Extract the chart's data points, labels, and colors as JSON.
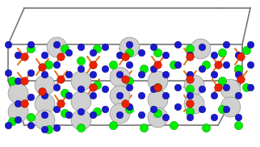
{
  "figsize": [
    3.22,
    1.82
  ],
  "dpi": 100,
  "bg_color": "white",
  "xlim": [
    0,
    322
  ],
  "ylim": [
    0,
    182
  ],
  "box_lines": [
    [
      [
        30,
        155
      ],
      [
        270,
        155
      ]
    ],
    [
      [
        30,
        155
      ],
      [
        10,
        100
      ]
    ],
    [
      [
        270,
        155
      ],
      [
        300,
        100
      ]
    ],
    [
      [
        10,
        100
      ],
      [
        250,
        100
      ]
    ],
    [
      [
        250,
        100
      ],
      [
        300,
        100
      ]
    ],
    [
      [
        10,
        100
      ],
      [
        10,
        55
      ]
    ],
    [
      [
        300,
        100
      ],
      [
        300,
        55
      ]
    ],
    [
      [
        10,
        55
      ],
      [
        250,
        55
      ]
    ],
    [
      [
        250,
        55
      ],
      [
        300,
        55
      ]
    ],
    [
      [
        10,
        55
      ],
      [
        30,
        10
      ]
    ],
    [
      [
        300,
        55
      ],
      [
        310,
        10
      ]
    ],
    [
      [
        30,
        10
      ],
      [
        270,
        10
      ]
    ],
    [
      [
        270,
        10
      ],
      [
        310,
        10
      ]
    ]
  ],
  "re_spheres": [
    [
      22,
      115
    ],
    [
      22,
      138
    ],
    [
      55,
      105
    ],
    [
      55,
      128
    ],
    [
      55,
      148
    ],
    [
      100,
      100
    ],
    [
      100,
      125
    ],
    [
      100,
      148
    ],
    [
      148,
      95
    ],
    [
      148,
      118
    ],
    [
      148,
      140
    ],
    [
      195,
      100
    ],
    [
      195,
      123
    ],
    [
      195,
      145
    ],
    [
      240,
      105
    ],
    [
      240,
      128
    ],
    [
      285,
      110
    ],
    [
      285,
      132
    ],
    [
      70,
      58
    ],
    [
      160,
      58
    ],
    [
      248,
      60
    ]
  ],
  "re_size": 320,
  "re_color": "#d0d0d0",
  "re_edgecolor": "#909090",
  "green_spheres": [
    [
      15,
      100
    ],
    [
      15,
      150
    ],
    [
      38,
      60
    ],
    [
      38,
      145
    ],
    [
      60,
      80
    ],
    [
      60,
      160
    ],
    [
      80,
      60
    ],
    [
      80,
      115
    ],
    [
      80,
      140
    ],
    [
      100,
      75
    ],
    [
      100,
      158
    ],
    [
      120,
      60
    ],
    [
      120,
      105
    ],
    [
      120,
      138
    ],
    [
      140,
      80
    ],
    [
      140,
      155
    ],
    [
      160,
      65
    ],
    [
      160,
      100
    ],
    [
      160,
      135
    ],
    [
      178,
      85
    ],
    [
      178,
      158
    ],
    [
      195,
      65
    ],
    [
      195,
      108
    ],
    [
      195,
      140
    ],
    [
      215,
      80
    ],
    [
      215,
      155
    ],
    [
      235,
      60
    ],
    [
      235,
      110
    ],
    [
      235,
      138
    ],
    [
      255,
      80
    ],
    [
      255,
      158
    ],
    [
      275,
      65
    ],
    [
      275,
      100
    ],
    [
      275,
      135
    ],
    [
      295,
      85
    ],
    [
      295,
      155
    ],
    [
      305,
      62
    ],
    [
      305,
      108
    ]
  ],
  "green_size": 55,
  "green_color": "#00ee00",
  "green_edgecolor": "#008800",
  "blue_spheres": [
    [
      10,
      55
    ],
    [
      10,
      90
    ],
    [
      10,
      155
    ],
    [
      22,
      68
    ],
    [
      22,
      100
    ],
    [
      22,
      128
    ],
    [
      22,
      148
    ],
    [
      38,
      55
    ],
    [
      38,
      90
    ],
    [
      38,
      120
    ],
    [
      38,
      155
    ],
    [
      55,
      68
    ],
    [
      55,
      92
    ],
    [
      55,
      118
    ],
    [
      55,
      142
    ],
    [
      55,
      160
    ],
    [
      70,
      55
    ],
    [
      70,
      80
    ],
    [
      70,
      108
    ],
    [
      70,
      135
    ],
    [
      70,
      158
    ],
    [
      85,
      65
    ],
    [
      85,
      92
    ],
    [
      85,
      118
    ],
    [
      85,
      142
    ],
    [
      100,
      58
    ],
    [
      100,
      85
    ],
    [
      100,
      110
    ],
    [
      100,
      138
    ],
    [
      115,
      65
    ],
    [
      115,
      92
    ],
    [
      115,
      118
    ],
    [
      115,
      142
    ],
    [
      130,
      58
    ],
    [
      130,
      85
    ],
    [
      130,
      110
    ],
    [
      130,
      135
    ],
    [
      148,
      68
    ],
    [
      148,
      92
    ],
    [
      148,
      118
    ],
    [
      148,
      142
    ],
    [
      160,
      55
    ],
    [
      160,
      80
    ],
    [
      160,
      108
    ],
    [
      160,
      132
    ],
    [
      175,
      65
    ],
    [
      175,
      92
    ],
    [
      175,
      118
    ],
    [
      175,
      142
    ],
    [
      190,
      58
    ],
    [
      190,
      85
    ],
    [
      190,
      110
    ],
    [
      190,
      135
    ],
    [
      205,
      68
    ],
    [
      205,
      92
    ],
    [
      205,
      118
    ],
    [
      205,
      145
    ],
    [
      220,
      55
    ],
    [
      220,
      80
    ],
    [
      220,
      108
    ],
    [
      220,
      132
    ],
    [
      235,
      68
    ],
    [
      235,
      92
    ],
    [
      235,
      118
    ],
    [
      235,
      145
    ],
    [
      250,
      58
    ],
    [
      250,
      85
    ],
    [
      250,
      110
    ],
    [
      250,
      135
    ],
    [
      265,
      68
    ],
    [
      265,
      92
    ],
    [
      265,
      118
    ],
    [
      265,
      145
    ],
    [
      280,
      55
    ],
    [
      280,
      80
    ],
    [
      280,
      108
    ],
    [
      280,
      135
    ],
    [
      295,
      68
    ],
    [
      295,
      92
    ],
    [
      295,
      118
    ],
    [
      295,
      145
    ],
    [
      310,
      55
    ],
    [
      310,
      80
    ],
    [
      310,
      108
    ]
  ],
  "blue_size": 38,
  "blue_color": "#1a1acc",
  "blue_edgecolor": "#00008a",
  "red_spheres": [
    [
      30,
      70
    ],
    [
      30,
      100
    ],
    [
      30,
      128
    ],
    [
      52,
      83
    ],
    [
      52,
      113
    ],
    [
      75,
      70
    ],
    [
      75,
      98
    ],
    [
      75,
      128
    ],
    [
      115,
      80
    ],
    [
      115,
      108
    ],
    [
      155,
      70
    ],
    [
      155,
      98
    ],
    [
      155,
      128
    ],
    [
      195,
      80
    ],
    [
      195,
      108
    ],
    [
      235,
      70
    ],
    [
      235,
      98
    ],
    [
      235,
      128
    ],
    [
      270,
      80
    ],
    [
      270,
      108
    ],
    [
      298,
      70
    ],
    [
      298,
      98
    ]
  ],
  "red_size": 48,
  "red_color": "#ee2200",
  "red_edgecolor": "#880000",
  "bonds": [
    [
      [
        30,
        70
      ],
      [
        22,
        60
      ]
    ],
    [
      [
        30,
        70
      ],
      [
        38,
        60
      ]
    ],
    [
      [
        30,
        70
      ],
      [
        22,
        80
      ]
    ],
    [
      [
        30,
        100
      ],
      [
        22,
        90
      ]
    ],
    [
      [
        30,
        100
      ],
      [
        38,
        90
      ]
    ],
    [
      [
        30,
        100
      ],
      [
        22,
        110
      ]
    ],
    [
      [
        30,
        128
      ],
      [
        22,
        118
      ]
    ],
    [
      [
        30,
        128
      ],
      [
        38,
        120
      ]
    ],
    [
      [
        30,
        128
      ],
      [
        22,
        138
      ]
    ],
    [
      [
        52,
        83
      ],
      [
        45,
        73
      ]
    ],
    [
      [
        52,
        83
      ],
      [
        60,
        73
      ]
    ],
    [
      [
        52,
        83
      ],
      [
        45,
        93
      ]
    ],
    [
      [
        52,
        113
      ],
      [
        45,
        103
      ]
    ],
    [
      [
        52,
        113
      ],
      [
        60,
        103
      ]
    ],
    [
      [
        52,
        113
      ],
      [
        45,
        123
      ]
    ],
    [
      [
        75,
        70
      ],
      [
        68,
        60
      ]
    ],
    [
      [
        75,
        70
      ],
      [
        83,
        60
      ]
    ],
    [
      [
        75,
        70
      ],
      [
        68,
        80
      ]
    ],
    [
      [
        75,
        98
      ],
      [
        68,
        88
      ]
    ],
    [
      [
        75,
        98
      ],
      [
        83,
        88
      ]
    ],
    [
      [
        75,
        98
      ],
      [
        68,
        108
      ]
    ],
    [
      [
        75,
        128
      ],
      [
        68,
        118
      ]
    ],
    [
      [
        75,
        128
      ],
      [
        83,
        118
      ]
    ],
    [
      [
        75,
        128
      ],
      [
        68,
        138
      ]
    ],
    [
      [
        115,
        80
      ],
      [
        108,
        70
      ]
    ],
    [
      [
        115,
        80
      ],
      [
        123,
        70
      ]
    ],
    [
      [
        115,
        80
      ],
      [
        108,
        90
      ]
    ],
    [
      [
        115,
        108
      ],
      [
        108,
        98
      ]
    ],
    [
      [
        115,
        108
      ],
      [
        123,
        98
      ]
    ],
    [
      [
        115,
        108
      ],
      [
        108,
        118
      ]
    ],
    [
      [
        155,
        70
      ],
      [
        148,
        60
      ]
    ],
    [
      [
        155,
        70
      ],
      [
        163,
        60
      ]
    ],
    [
      [
        155,
        70
      ],
      [
        148,
        80
      ]
    ],
    [
      [
        155,
        98
      ],
      [
        148,
        88
      ]
    ],
    [
      [
        155,
        98
      ],
      [
        163,
        88
      ]
    ],
    [
      [
        155,
        98
      ],
      [
        148,
        108
      ]
    ],
    [
      [
        155,
        128
      ],
      [
        148,
        118
      ]
    ],
    [
      [
        155,
        128
      ],
      [
        163,
        118
      ]
    ],
    [
      [
        155,
        128
      ],
      [
        148,
        138
      ]
    ],
    [
      [
        195,
        80
      ],
      [
        188,
        70
      ]
    ],
    [
      [
        195,
        80
      ],
      [
        203,
        70
      ]
    ],
    [
      [
        195,
        80
      ],
      [
        188,
        90
      ]
    ],
    [
      [
        195,
        108
      ],
      [
        188,
        98
      ]
    ],
    [
      [
        195,
        108
      ],
      [
        203,
        98
      ]
    ],
    [
      [
        195,
        108
      ],
      [
        188,
        118
      ]
    ],
    [
      [
        235,
        70
      ],
      [
        228,
        60
      ]
    ],
    [
      [
        235,
        70
      ],
      [
        243,
        60
      ]
    ],
    [
      [
        235,
        70
      ],
      [
        228,
        80
      ]
    ],
    [
      [
        235,
        98
      ],
      [
        228,
        88
      ]
    ],
    [
      [
        235,
        98
      ],
      [
        243,
        88
      ]
    ],
    [
      [
        235,
        98
      ],
      [
        228,
        108
      ]
    ],
    [
      [
        235,
        128
      ],
      [
        228,
        118
      ]
    ],
    [
      [
        235,
        128
      ],
      [
        243,
        118
      ]
    ],
    [
      [
        235,
        128
      ],
      [
        228,
        138
      ]
    ],
    [
      [
        270,
        80
      ],
      [
        263,
        70
      ]
    ],
    [
      [
        270,
        80
      ],
      [
        278,
        70
      ]
    ],
    [
      [
        270,
        80
      ],
      [
        263,
        90
      ]
    ],
    [
      [
        270,
        108
      ],
      [
        263,
        98
      ]
    ],
    [
      [
        270,
        108
      ],
      [
        278,
        98
      ]
    ],
    [
      [
        270,
        108
      ],
      [
        263,
        118
      ]
    ],
    [
      [
        298,
        70
      ],
      [
        291,
        60
      ]
    ],
    [
      [
        298,
        70
      ],
      [
        306,
        60
      ]
    ],
    [
      [
        298,
        70
      ],
      [
        291,
        80
      ]
    ],
    [
      [
        298,
        98
      ],
      [
        291,
        88
      ]
    ],
    [
      [
        298,
        98
      ],
      [
        306,
        88
      ]
    ],
    [
      [
        298,
        98
      ],
      [
        291,
        108
      ]
    ]
  ],
  "bond_color": "#e07820",
  "bond_lw": 1.5
}
